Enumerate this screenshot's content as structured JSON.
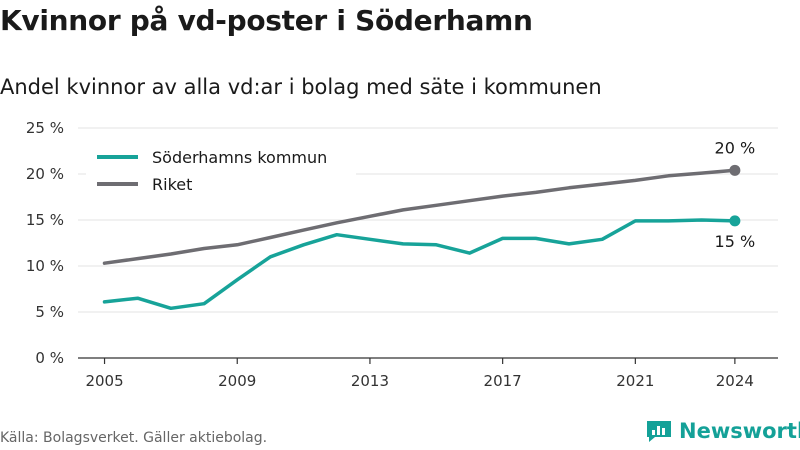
{
  "title": "Kvinnor på vd-poster i Söderhamn",
  "subtitle": "Andel kvinnor av alla vd:ar i bolag med säte i kommunen",
  "source": "Källa: Bolagsverket. Gäller aktiebolag.",
  "brand": "Newsworthy",
  "chart_data": {
    "type": "line",
    "x": [
      2005,
      2006,
      2007,
      2008,
      2009,
      2010,
      2011,
      2012,
      2013,
      2014,
      2015,
      2016,
      2017,
      2018,
      2019,
      2020,
      2021,
      2022,
      2023,
      2024
    ],
    "x_ticks": [
      "2005",
      "2009",
      "2013",
      "2017",
      "2021",
      "2024"
    ],
    "y_ticks": [
      "0 %",
      "5 %",
      "10 %",
      "15 %",
      "20 %",
      "25 %"
    ],
    "ylim": [
      0,
      25
    ],
    "grid": true,
    "legend_position": "top-left",
    "series": [
      {
        "name": "Söderhamns kommun",
        "color": "#17a399",
        "values": [
          6.1,
          6.5,
          5.4,
          5.9,
          8.5,
          11.0,
          12.3,
          13.4,
          12.9,
          12.4,
          12.3,
          11.4,
          13.0,
          13.0,
          12.4,
          12.9,
          14.9,
          14.9,
          15.0,
          14.9
        ],
        "end_label": "15 %"
      },
      {
        "name": "Riket",
        "color": "#6e6d72",
        "values": [
          10.3,
          10.8,
          11.3,
          11.9,
          12.3,
          13.1,
          13.9,
          14.7,
          15.4,
          16.1,
          16.6,
          17.1,
          17.6,
          18.0,
          18.5,
          18.9,
          19.3,
          19.8,
          20.1,
          20.4
        ],
        "end_label": "20 %"
      }
    ]
  }
}
